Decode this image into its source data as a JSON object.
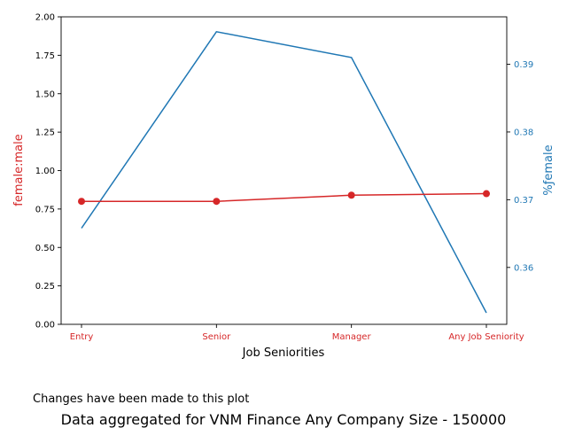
{
  "chart_data": {
    "type": "line",
    "categories": [
      "Entry",
      "Senior",
      "Manager",
      "Any Job Seniority"
    ],
    "xlabel": "Job Seniorities",
    "series": [
      {
        "name": "female:male",
        "axis": "left",
        "color": "#d62728",
        "markers": true,
        "values": [
          0.8,
          0.8,
          0.84,
          0.85
        ]
      },
      {
        "name": "%ƒemale",
        "axis": "right",
        "color": "#1f77b4",
        "markers": false,
        "values": [
          0.3658,
          0.3948,
          0.391,
          0.3533
        ]
      }
    ],
    "y_left": {
      "label": "female:male",
      "color": "#d62728",
      "ylim": [
        0,
        2.0
      ],
      "ticks": [
        "0.00",
        "0.25",
        "0.50",
        "0.75",
        "1.00",
        "1.25",
        "1.50",
        "1.75",
        "2.00"
      ]
    },
    "y_right": {
      "label": "%ƒemale",
      "color": "#1f77b4",
      "ylim": [
        0.3516,
        0.397
      ],
      "ticks": [
        "0.36",
        "0.37",
        "0.38",
        "0.39"
      ]
    },
    "grid": false,
    "legend": "none"
  },
  "note": "Changes have been made to this plot",
  "caption": "Data aggregated for VNM Finance Any Company Size - 150000"
}
